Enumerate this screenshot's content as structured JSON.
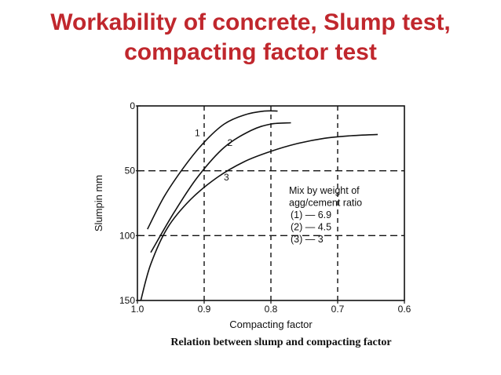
{
  "slide": {
    "title_line1": "Workability of concrete, Slump test,",
    "title_line2": "compacting factor test",
    "title_color": "#c0272d"
  },
  "chart_data": {
    "type": "line",
    "xlabel": "Compacting factor",
    "ylabel": "Slumpin mm",
    "caption": "Relation between slump and compacting factor",
    "x_axis": {
      "range": [
        1.0,
        0.6
      ],
      "reversed": true,
      "ticks": [
        1.0,
        0.9,
        0.8,
        0.7,
        0.6
      ],
      "tick_labels": [
        "1.0",
        "0.9",
        "0.8",
        "0.7",
        "0.6"
      ]
    },
    "y_axis": {
      "range": [
        0,
        150
      ],
      "inverted": true,
      "ticks": [
        0,
        50,
        100,
        150
      ],
      "tick_labels": [
        "0",
        "50",
        "100",
        "150"
      ]
    },
    "grid": "dashed",
    "legend_lines": [
      "Mix by weight of",
      "agg/cement ratio",
      "(1) — 6.9",
      "(2) — 4.5",
      "(3) — 3"
    ],
    "legend_position": "center-right",
    "series": [
      {
        "name": "1",
        "x": [
          0.985,
          0.96,
          0.93,
          0.9,
          0.87,
          0.84,
          0.81,
          0.79
        ],
        "y": [
          95,
          70,
          47,
          28,
          14,
          7,
          4,
          4
        ]
      },
      {
        "name": "2",
        "x": [
          0.98,
          0.945,
          0.91,
          0.87,
          0.83,
          0.8,
          0.77
        ],
        "y": [
          113,
          82,
          55,
          32,
          19,
          14,
          13
        ]
      },
      {
        "name": "3",
        "x": [
          0.995,
          0.98,
          0.955,
          0.92,
          0.88,
          0.84,
          0.8,
          0.76,
          0.72,
          0.68,
          0.64
        ],
        "y": [
          150,
          122,
          94,
          72,
          55,
          43,
          35,
          29,
          25,
          23,
          22
        ]
      }
    ]
  }
}
